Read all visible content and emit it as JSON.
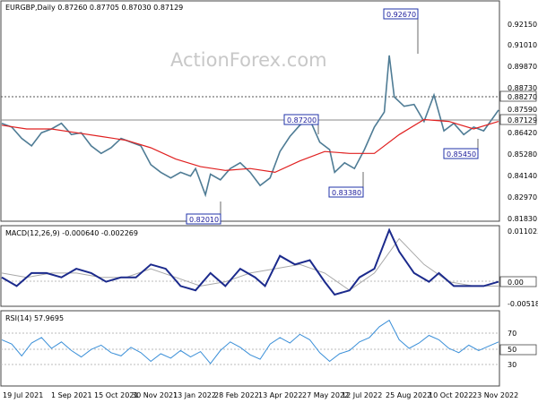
{
  "watermark": "ActionForex.com",
  "colors": {
    "price": "#4f7c95",
    "ma": "#e02020",
    "macd": "#1b2a8c",
    "signal": "#a8a8a8",
    "rsi": "#3a8fd8",
    "label_border": "#2233aa",
    "grid": "#c8c8c8",
    "panel_border": "#444444"
  },
  "chart_data": [
    {
      "type": "line",
      "panel": "price",
      "title": "EURGBP,Daily  0.87260 0.87705 0.87030 0.87129",
      "x_ticks": [
        "19 Jul 2021",
        "1 Sep 2021",
        "15 Oct 2021",
        "30 Nov 2021",
        "13 Jan 2022",
        "28 Feb 2022",
        "13 Apr 2022",
        "27 May 2022",
        "12 Jul 2022",
        "25 Aug 2022",
        "10 Oct 2022",
        "23 Nov 2022"
      ],
      "y_ticks": [
        "0.92150",
        "0.91010",
        "0.89870",
        "0.88730",
        "0.87590",
        "0.86420",
        "0.85280",
        "0.84140",
        "0.82970",
        "0.81830"
      ],
      "ylim": [
        0.8125,
        0.9285
      ],
      "current_price_label": "0.87129",
      "current_price": 0.87129,
      "resistance_label": "0.88270",
      "resistance": 0.8827,
      "annotations": [
        {
          "label": "0.92670",
          "x": 0.785,
          "y": 0.9267
        },
        {
          "label": "0.87200",
          "x": 0.599,
          "y": 0.872
        },
        {
          "label": "0.83380",
          "x": 0.667,
          "y": 0.8338
        },
        {
          "label": "0.85450",
          "x": 0.865,
          "y": 0.8545
        },
        {
          "label": "0.82010",
          "x": 0.414,
          "y": 0.8201
        }
      ],
      "series": [
        {
          "values": [
            [
              0.0,
              0.864
            ],
            [
              0.02,
              0.862
            ],
            [
              0.04,
              0.856
            ],
            [
              0.06,
              0.852
            ],
            [
              0.08,
              0.859
            ],
            [
              0.1,
              0.861
            ],
            [
              0.12,
              0.864
            ],
            [
              0.14,
              0.858
            ],
            [
              0.16,
              0.859
            ],
            [
              0.18,
              0.852
            ],
            [
              0.2,
              0.848
            ],
            [
              0.22,
              0.851
            ],
            [
              0.24,
              0.856
            ],
            [
              0.26,
              0.854
            ],
            [
              0.28,
              0.852
            ],
            [
              0.3,
              0.842
            ],
            [
              0.32,
              0.838
            ],
            [
              0.34,
              0.835
            ],
            [
              0.36,
              0.838
            ],
            [
              0.38,
              0.836
            ],
            [
              0.39,
              0.84
            ],
            [
              0.41,
              0.826
            ],
            [
              0.42,
              0.837
            ],
            [
              0.44,
              0.834
            ],
            [
              0.46,
              0.84
            ],
            [
              0.48,
              0.843
            ],
            [
              0.5,
              0.838
            ],
            [
              0.52,
              0.831
            ],
            [
              0.54,
              0.835
            ],
            [
              0.56,
              0.849
            ],
            [
              0.58,
              0.857
            ],
            [
              0.6,
              0.863
            ],
            [
              0.62,
              0.866
            ],
            [
              0.64,
              0.854
            ],
            [
              0.66,
              0.85
            ],
            [
              0.67,
              0.838
            ],
            [
              0.69,
              0.843
            ],
            [
              0.71,
              0.84
            ],
            [
              0.73,
              0.85
            ],
            [
              0.75,
              0.862
            ],
            [
              0.77,
              0.87
            ],
            [
              0.78,
              0.9
            ],
            [
              0.79,
              0.878
            ],
            [
              0.81,
              0.873
            ],
            [
              0.83,
              0.874
            ],
            [
              0.85,
              0.865
            ],
            [
              0.87,
              0.879
            ],
            [
              0.89,
              0.86
            ],
            [
              0.91,
              0.864
            ],
            [
              0.93,
              0.858
            ],
            [
              0.95,
              0.862
            ],
            [
              0.97,
              0.86
            ],
            [
              1.0,
              0.871
            ]
          ]
        },
        {
          "values": [
            [
              0.0,
              0.863
            ],
            [
              0.05,
              0.861
            ],
            [
              0.1,
              0.861
            ],
            [
              0.15,
              0.859
            ],
            [
              0.2,
              0.857
            ],
            [
              0.25,
              0.855
            ],
            [
              0.3,
              0.851
            ],
            [
              0.35,
              0.845
            ],
            [
              0.4,
              0.841
            ],
            [
              0.45,
              0.839
            ],
            [
              0.5,
              0.84
            ],
            [
              0.55,
              0.838
            ],
            [
              0.6,
              0.844
            ],
            [
              0.65,
              0.849
            ],
            [
              0.7,
              0.848
            ],
            [
              0.75,
              0.848
            ],
            [
              0.8,
              0.858
            ],
            [
              0.85,
              0.866
            ],
            [
              0.9,
              0.865
            ],
            [
              0.95,
              0.861
            ],
            [
              1.0,
              0.865
            ]
          ]
        }
      ]
    },
    {
      "type": "line",
      "panel": "macd",
      "title": "MACD(12,26,9) -0.000640 -0.002269",
      "y_ticks": [
        "0.011023",
        "0.00",
        "-0.005182"
      ],
      "ylim": [
        -0.0065,
        0.0118
      ],
      "current_label": "0.00",
      "series": [
        {
          "values": [
            [
              0.0,
              0.0
            ],
            [
              0.03,
              -0.002
            ],
            [
              0.06,
              0.001
            ],
            [
              0.09,
              0.001
            ],
            [
              0.12,
              0.0
            ],
            [
              0.15,
              0.002
            ],
            [
              0.18,
              0.001
            ],
            [
              0.21,
              -0.001
            ],
            [
              0.24,
              0.0
            ],
            [
              0.27,
              0.0
            ],
            [
              0.3,
              0.003
            ],
            [
              0.33,
              0.002
            ],
            [
              0.36,
              -0.002
            ],
            [
              0.39,
              -0.003
            ],
            [
              0.42,
              0.001
            ],
            [
              0.45,
              -0.002
            ],
            [
              0.48,
              0.002
            ],
            [
              0.51,
              0.0
            ],
            [
              0.53,
              -0.002
            ],
            [
              0.56,
              0.005
            ],
            [
              0.59,
              0.003
            ],
            [
              0.62,
              0.004
            ],
            [
              0.65,
              -0.001
            ],
            [
              0.67,
              -0.004
            ],
            [
              0.7,
              -0.003
            ],
            [
              0.72,
              0.0
            ],
            [
              0.75,
              0.002
            ],
            [
              0.78,
              0.011
            ],
            [
              0.8,
              0.006
            ],
            [
              0.83,
              0.001
            ],
            [
              0.86,
              -0.001
            ],
            [
              0.88,
              0.001
            ],
            [
              0.91,
              -0.002
            ],
            [
              0.94,
              -0.002
            ],
            [
              0.97,
              -0.002
            ],
            [
              1.0,
              -0.001
            ]
          ]
        },
        {
          "values": [
            [
              0.0,
              0.001
            ],
            [
              0.05,
              0.0
            ],
            [
              0.1,
              0.001
            ],
            [
              0.15,
              0.001
            ],
            [
              0.2,
              0.0
            ],
            [
              0.25,
              0.0
            ],
            [
              0.3,
              0.002
            ],
            [
              0.35,
              0.0
            ],
            [
              0.4,
              -0.002
            ],
            [
              0.45,
              -0.001
            ],
            [
              0.5,
              0.001
            ],
            [
              0.55,
              0.002
            ],
            [
              0.6,
              0.003
            ],
            [
              0.65,
              0.001
            ],
            [
              0.7,
              -0.003
            ],
            [
              0.75,
              0.001
            ],
            [
              0.8,
              0.009
            ],
            [
              0.85,
              0.003
            ],
            [
              0.9,
              -0.001
            ],
            [
              0.95,
              -0.002
            ],
            [
              1.0,
              -0.002
            ]
          ]
        }
      ]
    },
    {
      "type": "line",
      "panel": "rsi",
      "title": "RSI(14) 57.9695",
      "y_ticks": [
        "70",
        "50",
        "30"
      ],
      "ylim": [
        18,
        86
      ],
      "current_label": "50",
      "series": [
        {
          "values": [
            [
              0.0,
              60
            ],
            [
              0.02,
              56
            ],
            [
              0.04,
              45
            ],
            [
              0.06,
              57
            ],
            [
              0.08,
              62
            ],
            [
              0.1,
              52
            ],
            [
              0.12,
              58
            ],
            [
              0.14,
              50
            ],
            [
              0.16,
              44
            ],
            [
              0.18,
              51
            ],
            [
              0.2,
              55
            ],
            [
              0.22,
              48
            ],
            [
              0.24,
              45
            ],
            [
              0.26,
              53
            ],
            [
              0.28,
              48
            ],
            [
              0.3,
              40
            ],
            [
              0.32,
              47
            ],
            [
              0.34,
              43
            ],
            [
              0.36,
              50
            ],
            [
              0.38,
              44
            ],
            [
              0.4,
              49
            ],
            [
              0.42,
              38
            ],
            [
              0.44,
              50
            ],
            [
              0.46,
              58
            ],
            [
              0.48,
              53
            ],
            [
              0.5,
              46
            ],
            [
              0.52,
              42
            ],
            [
              0.54,
              56
            ],
            [
              0.56,
              62
            ],
            [
              0.58,
              57
            ],
            [
              0.6,
              65
            ],
            [
              0.62,
              60
            ],
            [
              0.64,
              48
            ],
            [
              0.66,
              40
            ],
            [
              0.68,
              47
            ],
            [
              0.7,
              50
            ],
            [
              0.72,
              58
            ],
            [
              0.74,
              62
            ],
            [
              0.76,
              72
            ],
            [
              0.78,
              78
            ],
            [
              0.8,
              60
            ],
            [
              0.82,
              52
            ],
            [
              0.84,
              57
            ],
            [
              0.86,
              64
            ],
            [
              0.88,
              60
            ],
            [
              0.9,
              52
            ],
            [
              0.92,
              48
            ],
            [
              0.94,
              55
            ],
            [
              0.96,
              50
            ],
            [
              0.98,
              54
            ],
            [
              1.0,
              58
            ]
          ]
        }
      ]
    }
  ]
}
